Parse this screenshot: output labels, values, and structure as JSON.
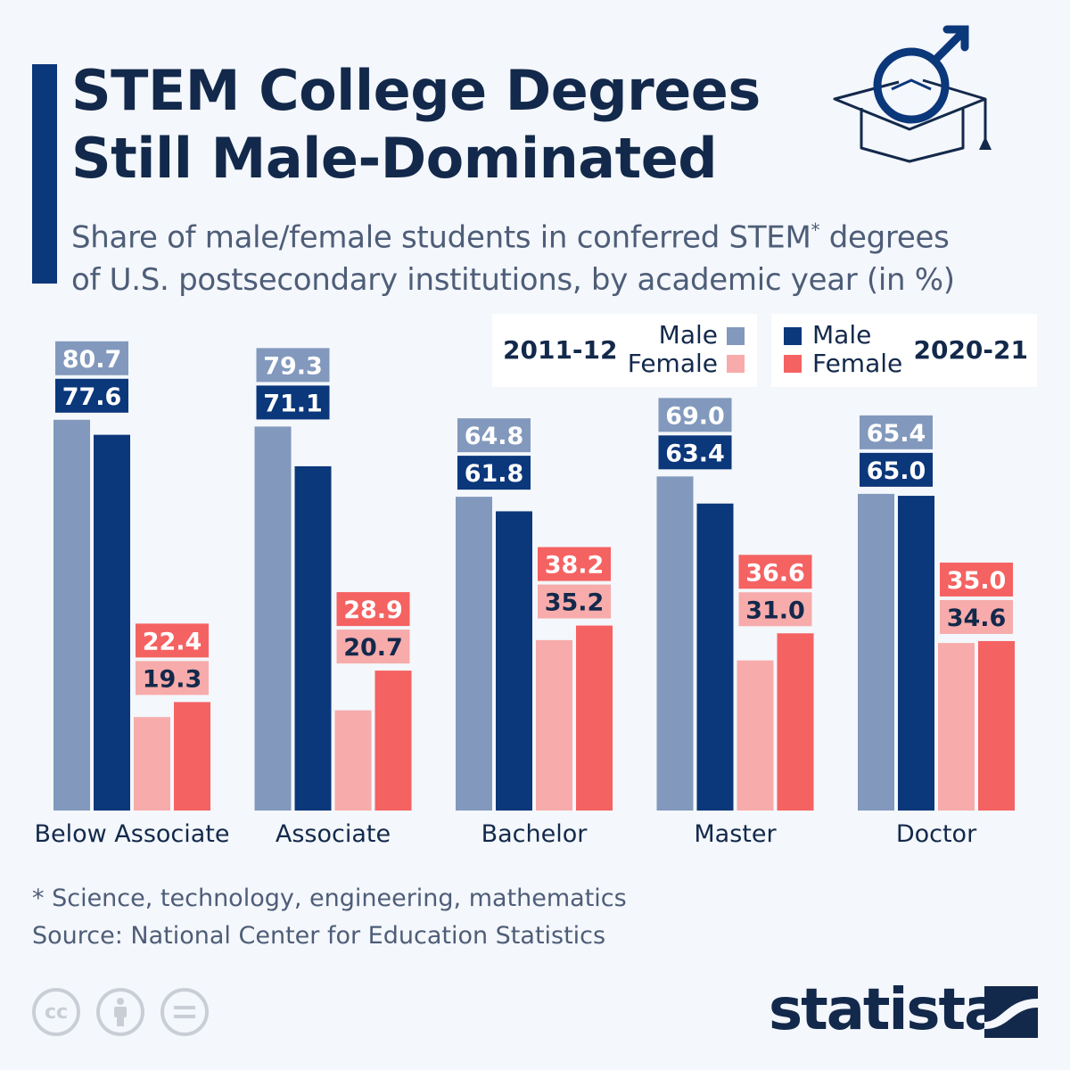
{
  "header": {
    "title_line1": "STEM College Degrees",
    "title_line2": "Still Male-Dominated",
    "subtitle_line1": "Share of male/female students in conferred STEM",
    "subtitle_sup": "*",
    "subtitle_line1_end": " degrees",
    "subtitle_line2": "of U.S. postsecondary institutions, by academic year (in %)",
    "icon": "graduation-cap-male-symbol-icon"
  },
  "legend": {
    "group1": {
      "year": "2011-12",
      "male": "Male",
      "female": "Female"
    },
    "group2": {
      "year": "2020-21",
      "male": "Male",
      "female": "Female"
    }
  },
  "colors": {
    "male_2011": "#8299bd",
    "male_2020": "#0b377b",
    "female_2011": "#f7abab",
    "female_2020": "#f56262"
  },
  "chart_data": {
    "type": "bar",
    "categories": [
      "Below Associate",
      "Associate",
      "Bachelor",
      "Master",
      "Doctor"
    ],
    "series": [
      {
        "name": "2011-12 Male",
        "values": [
          80.7,
          79.3,
          64.8,
          69.0,
          65.4
        ]
      },
      {
        "name": "2020-21 Male",
        "values": [
          77.6,
          71.1,
          61.8,
          63.4,
          65.0
        ]
      },
      {
        "name": "2011-12 Female",
        "values": [
          19.3,
          20.7,
          35.2,
          31.0,
          34.6
        ]
      },
      {
        "name": "2020-21 Female",
        "values": [
          22.4,
          28.9,
          38.2,
          36.6,
          35.0
        ]
      }
    ],
    "ylim": [
      0,
      100
    ],
    "grid": false,
    "legend_position": "top-right"
  },
  "footer": {
    "note": "* Science, technology, engineering, mathematics",
    "source": "Source: National Center for Education Statistics",
    "license_icons": [
      "cc-icon",
      "attribution-icon",
      "no-derivatives-icon"
    ],
    "brand": "statista"
  }
}
